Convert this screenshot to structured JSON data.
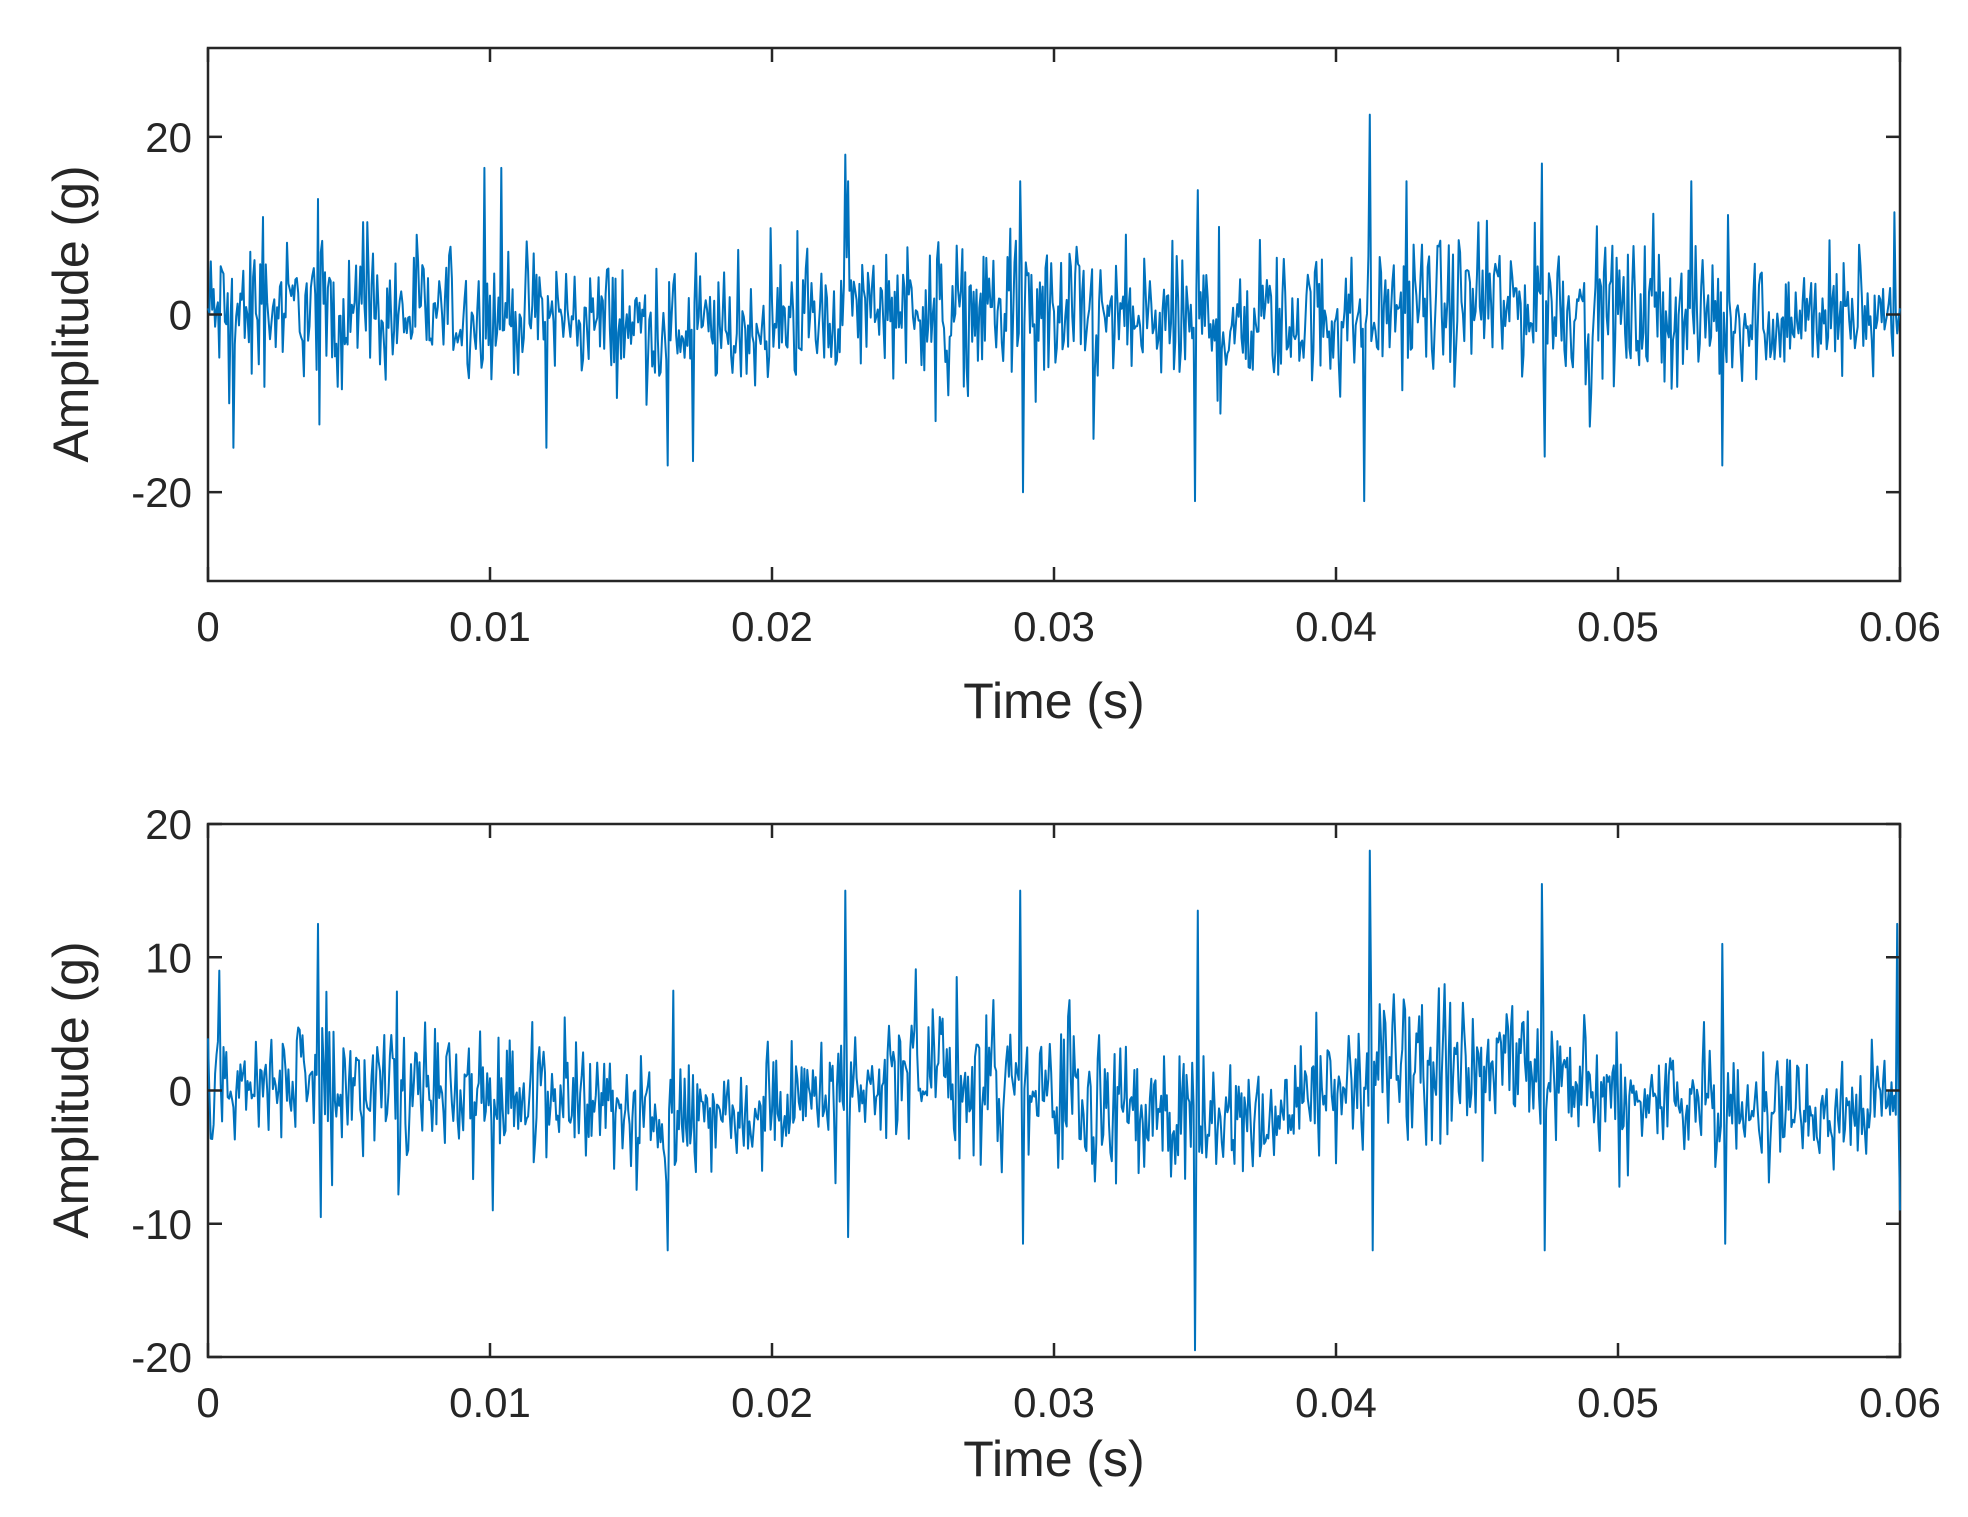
{
  "chart_data": [
    {
      "type": "line",
      "title": "",
      "xlabel": "Time (s)",
      "ylabel": "Amplitude (g)",
      "xlim": [
        0,
        0.06
      ],
      "ylim": [
        -30,
        30
      ],
      "xticks": [
        0,
        0.01,
        0.02,
        0.03,
        0.04,
        0.05,
        0.06
      ],
      "xtick_labels": [
        "0",
        "0.01",
        "0.02",
        "0.03",
        "0.04",
        "0.05",
        "0.06"
      ],
      "yticks": [
        -20,
        0,
        20
      ],
      "ytick_labels": [
        "-20",
        "0",
        "20"
      ],
      "grid": false,
      "line_color": "#0072bd",
      "sample_interval": 5e-05,
      "envelope": {
        "x": [
          0,
          0.003,
          0.006,
          0.009,
          0.012,
          0.015,
          0.018,
          0.021,
          0.024,
          0.027,
          0.03,
          0.033,
          0.036,
          0.039,
          0.042,
          0.045,
          0.048,
          0.051,
          0.054,
          0.057,
          0.06
        ],
        "upper": [
          7,
          7.5,
          7,
          6,
          6,
          5,
          4,
          5,
          8,
          7,
          7,
          6,
          6,
          6,
          7,
          8,
          8,
          7,
          6,
          5,
          6
        ],
        "lower": [
          -7,
          -6,
          -7,
          -6,
          -6,
          -7,
          -8,
          -6,
          -5,
          -6,
          -7,
          -8,
          -8,
          -7,
          -6,
          -6,
          -6,
          -7,
          -7,
          -6,
          -6
        ]
      },
      "peaks": {
        "x": [
          0.0009,
          0.0039,
          0.0098,
          0.0104,
          0.012,
          0.0163,
          0.0172,
          0.0226,
          0.0227,
          0.0258,
          0.0288,
          0.0289,
          0.0314,
          0.035,
          0.0351,
          0.041,
          0.0412,
          0.0425,
          0.0473,
          0.0474,
          0.0526,
          0.0537,
          0.0598
        ],
        "y": [
          -15,
          13,
          16.5,
          16.5,
          -15,
          -17,
          -16.5,
          18,
          15,
          -12,
          15,
          -20,
          -14,
          -21,
          14,
          -21,
          22.5,
          15,
          17,
          -16,
          15,
          -17,
          11.5
        ]
      }
    },
    {
      "type": "line",
      "title": "",
      "xlabel": "Time (s)",
      "ylabel": "Amplitude (g)",
      "xlim": [
        0,
        0.06
      ],
      "ylim": [
        -20,
        20
      ],
      "xticks": [
        0,
        0.01,
        0.02,
        0.03,
        0.04,
        0.05,
        0.06
      ],
      "xtick_labels": [
        "0",
        "0.01",
        "0.02",
        "0.03",
        "0.04",
        "0.05",
        "0.06"
      ],
      "yticks": [
        -20,
        -10,
        0,
        10,
        20
      ],
      "ytick_labels": [
        "-20",
        "-10",
        "0",
        "10",
        "20"
      ],
      "grid": false,
      "line_color": "#0072bd",
      "sample_interval": 5e-05,
      "envelope": {
        "x": [
          0,
          0.003,
          0.006,
          0.009,
          0.012,
          0.015,
          0.018,
          0.021,
          0.024,
          0.027,
          0.03,
          0.033,
          0.036,
          0.039,
          0.042,
          0.045,
          0.048,
          0.051,
          0.054,
          0.057,
          0.06
        ],
        "upper": [
          4,
          5,
          5,
          4,
          3,
          2,
          2,
          3,
          6,
          5,
          4,
          3,
          2,
          3,
          7,
          6,
          5,
          3,
          3,
          2,
          3
        ],
        "lower": [
          -4,
          -3,
          -4,
          -4,
          -4,
          -5,
          -5,
          -4,
          -3,
          -4,
          -5,
          -6,
          -6,
          -5,
          -3,
          -3,
          -4,
          -4,
          -5,
          -5,
          -4
        ]
      },
      "peaks": {
        "x": [
          0.0004,
          0.0039,
          0.004,
          0.0101,
          0.0163,
          0.0165,
          0.0226,
          0.0227,
          0.0288,
          0.0289,
          0.035,
          0.0351,
          0.0412,
          0.0413,
          0.0473,
          0.0474,
          0.0537,
          0.0538,
          0.0599,
          0.06
        ],
        "y": [
          9,
          12.5,
          -9.5,
          -9,
          -12,
          7.5,
          15,
          -11,
          15,
          -11.5,
          -19.5,
          13.5,
          18,
          -12,
          15.5,
          -12,
          11,
          -11.5,
          12.5,
          -9
        ]
      }
    }
  ]
}
